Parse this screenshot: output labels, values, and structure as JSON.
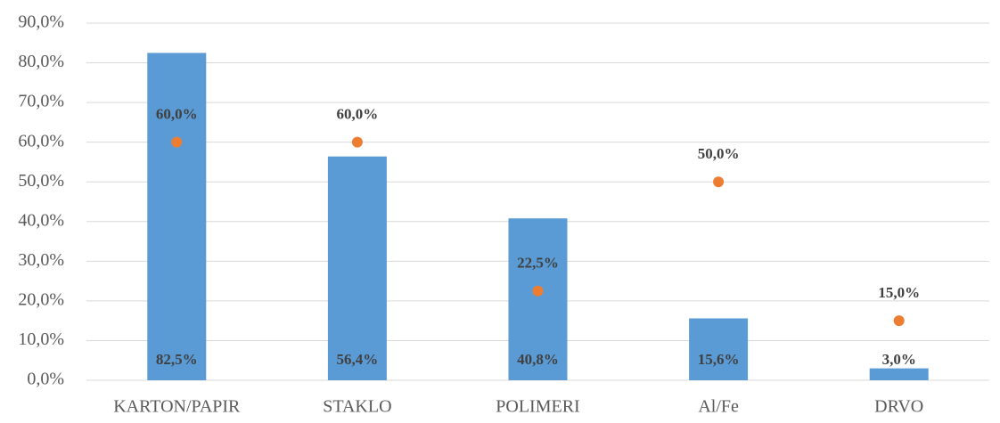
{
  "chart_data": {
    "type": "bar",
    "categories": [
      "KARTON/PAPIR",
      "STAKLO",
      "POLIMERI",
      "Al/Fe",
      "DRVO"
    ],
    "series": [
      {
        "type": "bar",
        "color": "#5b9bd5",
        "values": [
          82.5,
          56.4,
          40.8,
          15.6,
          3.0
        ],
        "value_labels": [
          "82,5%",
          "56,4%",
          "40,8%",
          "15,6%",
          "3,0%"
        ]
      },
      {
        "type": "scatter",
        "color": "#ed7d31",
        "values": [
          60.0,
          60.0,
          22.5,
          50.0,
          15.0
        ],
        "value_labels": [
          "60,0%",
          "60,0%",
          "22,5%",
          "50,0%",
          "15,0%"
        ]
      }
    ],
    "ylim": [
      0,
      90
    ],
    "yticks": [
      {
        "value": 0,
        "label": "0,0%"
      },
      {
        "value": 10,
        "label": "10,0%"
      },
      {
        "value": 20,
        "label": "20,0%"
      },
      {
        "value": 30,
        "label": "30,0%"
      },
      {
        "value": 40,
        "label": "40,0%"
      },
      {
        "value": 50,
        "label": "50,0%"
      },
      {
        "value": 60,
        "label": "60,0%"
      },
      {
        "value": 70,
        "label": "70,0%"
      },
      {
        "value": 80,
        "label": "80,0%"
      },
      {
        "value": 90,
        "label": "90,0%"
      }
    ],
    "grid": true
  }
}
